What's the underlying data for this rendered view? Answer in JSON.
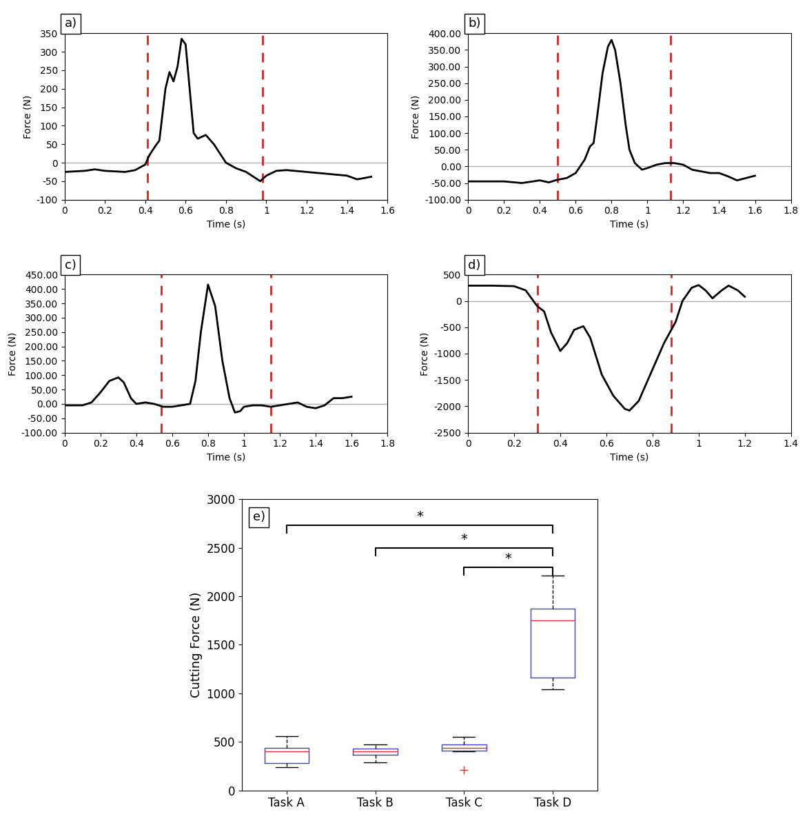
{
  "chart_data": [
    {
      "type": "line",
      "panel_label": "a)",
      "xlabel": "Time (s)",
      "ylabel": "Force (N)",
      "color": "#000000",
      "x": [
        0,
        0.1,
        0.15,
        0.2,
        0.3,
        0.35,
        0.4,
        0.42,
        0.45,
        0.47,
        0.5,
        0.52,
        0.54,
        0.56,
        0.58,
        0.6,
        0.62,
        0.64,
        0.66,
        0.7,
        0.74,
        0.8,
        0.85,
        0.9,
        0.97,
        1.0,
        1.05,
        1.1,
        1.2,
        1.3,
        1.4,
        1.45,
        1.5,
        1.52
      ],
      "values": [
        -25,
        -22,
        -18,
        -22,
        -25,
        -20,
        -5,
        20,
        45,
        60,
        200,
        245,
        220,
        260,
        335,
        320,
        200,
        80,
        65,
        75,
        50,
        0,
        -15,
        -25,
        -50,
        -35,
        -22,
        -20,
        -25,
        -30,
        -35,
        -45,
        -40,
        -38
      ],
      "vlines": [
        0.41,
        0.98
      ],
      "xlim": [
        0,
        1.6
      ],
      "xticks": [
        0,
        0.2,
        0.4,
        0.6,
        0.8,
        1,
        1.2,
        1.4,
        1.6
      ],
      "ylim": [
        -100,
        350
      ],
      "yticks": [
        -100,
        -50,
        0,
        50,
        100,
        150,
        200,
        250,
        300,
        350
      ]
    },
    {
      "type": "line",
      "panel_label": "b)",
      "xlabel": "Time (s)",
      "ylabel": "Force (N)",
      "color": "#000000",
      "x": [
        0,
        0.2,
        0.3,
        0.4,
        0.45,
        0.5,
        0.55,
        0.6,
        0.65,
        0.68,
        0.7,
        0.72,
        0.75,
        0.78,
        0.8,
        0.82,
        0.85,
        0.88,
        0.9,
        0.93,
        0.97,
        1.0,
        1.05,
        1.1,
        1.15,
        1.2,
        1.25,
        1.3,
        1.35,
        1.4,
        1.45,
        1.5,
        1.55,
        1.6
      ],
      "values": [
        -45,
        -45,
        -50,
        -42,
        -48,
        -40,
        -35,
        -20,
        20,
        60,
        70,
        150,
        280,
        360,
        380,
        350,
        250,
        120,
        50,
        10,
        -10,
        -5,
        5,
        10,
        10,
        5,
        -10,
        -15,
        -20,
        -20,
        -30,
        -42,
        -35,
        -28
      ],
      "vlines": [
        0.5,
        1.13
      ],
      "xlim": [
        0,
        1.8
      ],
      "xticks": [
        0,
        0.2,
        0.4,
        0.6,
        0.8,
        1,
        1.2,
        1.4,
        1.6,
        1.8
      ],
      "ylim": [
        -100,
        400
      ],
      "yticks": [
        {
          "value": -100,
          "label": "-100.00"
        },
        {
          "value": -50,
          "label": "-50.00"
        },
        {
          "value": 0,
          "label": "0.00"
        },
        {
          "value": 50,
          "label": "50.00"
        },
        {
          "value": 100,
          "label": "100.00"
        },
        {
          "value": 150,
          "label": "150.00"
        },
        {
          "value": 200,
          "label": "200.00"
        },
        {
          "value": 250,
          "label": "250.00"
        },
        {
          "value": 300,
          "label": "300.00"
        },
        {
          "value": 350,
          "label": "350.00"
        },
        {
          "value": 400,
          "label": "400.00"
        }
      ]
    },
    {
      "type": "line",
      "panel_label": "c)",
      "xlabel": "Time (s)",
      "ylabel": "Force (N)",
      "color": "#000000",
      "x": [
        0,
        0.1,
        0.15,
        0.2,
        0.25,
        0.3,
        0.33,
        0.37,
        0.4,
        0.45,
        0.5,
        0.55,
        0.6,
        0.65,
        0.7,
        0.73,
        0.76,
        0.8,
        0.84,
        0.88,
        0.92,
        0.95,
        0.98,
        1.0,
        1.05,
        1.1,
        1.15,
        1.2,
        1.25,
        1.3,
        1.35,
        1.4,
        1.45,
        1.48,
        1.5,
        1.55,
        1.6
      ],
      "values": [
        -5,
        -5,
        5,
        40,
        80,
        92,
        75,
        20,
        0,
        5,
        0,
        -10,
        -10,
        -5,
        0,
        80,
        250,
        415,
        340,
        150,
        20,
        -30,
        -25,
        -10,
        -5,
        -5,
        -10,
        -5,
        0,
        5,
        -10,
        -15,
        -5,
        10,
        20,
        20,
        25
      ],
      "vlines": [
        0.54,
        1.15
      ],
      "xlim": [
        0,
        1.8
      ],
      "xticks": [
        0,
        0.2,
        0.4,
        0.6,
        0.8,
        1,
        1.2,
        1.4,
        1.6,
        1.8
      ],
      "ylim": [
        -100,
        450
      ],
      "yticks": [
        {
          "value": -100,
          "label": "-100.00"
        },
        {
          "value": -50,
          "label": "-50.00"
        },
        {
          "value": 0,
          "label": "0.00"
        },
        {
          "value": 50,
          "label": "50.00"
        },
        {
          "value": 100,
          "label": "100.00"
        },
        {
          "value": 150,
          "label": "150.00"
        },
        {
          "value": 200,
          "label": "200.00"
        },
        {
          "value": 250,
          "label": "250.00"
        },
        {
          "value": 300,
          "label": "300.00"
        },
        {
          "value": 350,
          "label": "350.00"
        },
        {
          "value": 400,
          "label": "400.00"
        },
        {
          "value": 450,
          "label": "450.00"
        }
      ]
    },
    {
      "type": "line",
      "panel_label": "d)",
      "xlabel": "Time (s)",
      "ylabel": "Force (N)",
      "color": "#000000",
      "x": [
        0,
        0.1,
        0.2,
        0.25,
        0.3,
        0.33,
        0.36,
        0.4,
        0.43,
        0.46,
        0.5,
        0.53,
        0.58,
        0.63,
        0.68,
        0.7,
        0.74,
        0.8,
        0.85,
        0.9,
        0.93,
        0.97,
        1.0,
        1.03,
        1.06,
        1.1,
        1.13,
        1.17,
        1.2
      ],
      "values": [
        290,
        290,
        280,
        200,
        -100,
        -200,
        -600,
        -950,
        -800,
        -550,
        -480,
        -700,
        -1400,
        -1800,
        -2050,
        -2080,
        -1900,
        -1300,
        -800,
        -400,
        0,
        250,
        300,
        200,
        50,
        200,
        290,
        200,
        80
      ],
      "vlines": [
        0.3,
        0.88
      ],
      "xlim": [
        0,
        1.4
      ],
      "xticks": [
        0,
        0.2,
        0.4,
        0.6,
        0.8,
        1,
        1.2,
        1.4
      ],
      "ylim": [
        -2500,
        500
      ],
      "yticks": [
        -2500,
        -2000,
        -1500,
        -1000,
        -500,
        0,
        500
      ]
    },
    {
      "type": "box",
      "panel_label": "e)",
      "ylabel": "Cutting Force (N)",
      "categories": [
        "Task A",
        "Task B",
        "Task C",
        "Task D"
      ],
      "boxes": [
        {
          "min": 240,
          "q1": 280,
          "median": 400,
          "q3": 440,
          "max": 560,
          "outliers": []
        },
        {
          "min": 290,
          "q1": 370,
          "median": 400,
          "q3": 430,
          "max": 470,
          "outliers": []
        },
        {
          "min": 400,
          "q1": 410,
          "median": 440,
          "q3": 470,
          "max": 550,
          "outliers": [
            210
          ]
        },
        {
          "min": 1040,
          "q1": 1165,
          "median": 1750,
          "q3": 1875,
          "max": 2210,
          "outliers": []
        }
      ],
      "box_color": "#4040c0",
      "median_color": "#e03030",
      "outlier_color": "#e03030",
      "significance": [
        {
          "from": "Task A",
          "to": "Task D",
          "y": 2730,
          "label": "*"
        },
        {
          "from": "Task B",
          "to": "Task D",
          "y": 2500,
          "label": "*"
        },
        {
          "from": "Task C",
          "to": "Task D",
          "y": 2300,
          "label": "*"
        }
      ],
      "ylim": [
        0,
        3000
      ],
      "yticks": [
        0,
        500,
        1000,
        1500,
        2000,
        2500,
        3000
      ]
    }
  ]
}
